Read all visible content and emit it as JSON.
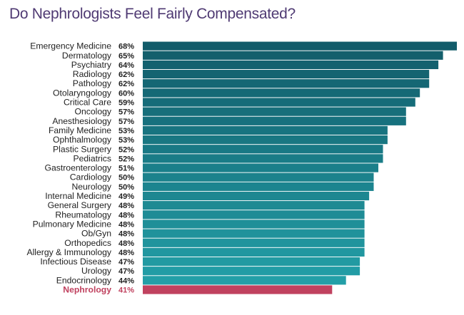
{
  "title": "Do Nephrologists Feel Fairly Compensated?",
  "chart_data": {
    "type": "bar",
    "orientation": "horizontal",
    "title": "Do Nephrologists Feel Fairly Compensated?",
    "value_suffix": "%",
    "grid": false,
    "legend": "none",
    "xlim": [
      0,
      68
    ],
    "categories": [
      "Emergency Medicine",
      "Dermatology",
      "Psychiatry",
      "Radiology",
      "Pathology",
      "Otolaryngology",
      "Critical Care",
      "Oncology",
      "Anesthesiology",
      "Family Medicine",
      "Ophthalmology",
      "Plastic Surgery",
      "Pediatrics",
      "Gastroenterology",
      "Cardiology",
      "Neurology",
      "Internal Medicine",
      "General Surgery",
      "Rheumatology",
      "Pulmonary Medicine",
      "Ob/Gyn",
      "Orthopedics",
      "Allergy & Immunology",
      "Infectious Disease",
      "Urology",
      "Endocrinology",
      "Nephrology"
    ],
    "values": [
      68,
      65,
      64,
      62,
      62,
      60,
      59,
      57,
      57,
      53,
      53,
      52,
      52,
      51,
      50,
      50,
      49,
      48,
      48,
      48,
      48,
      48,
      48,
      47,
      47,
      44,
      41
    ],
    "highlight": "Nephrology",
    "colors": {
      "gradient_start": "#125c6a",
      "gradient_end": "#239fa7",
      "highlight": "#c0425f",
      "highlight_label": "#c0425f",
      "label": "#222222"
    }
  }
}
